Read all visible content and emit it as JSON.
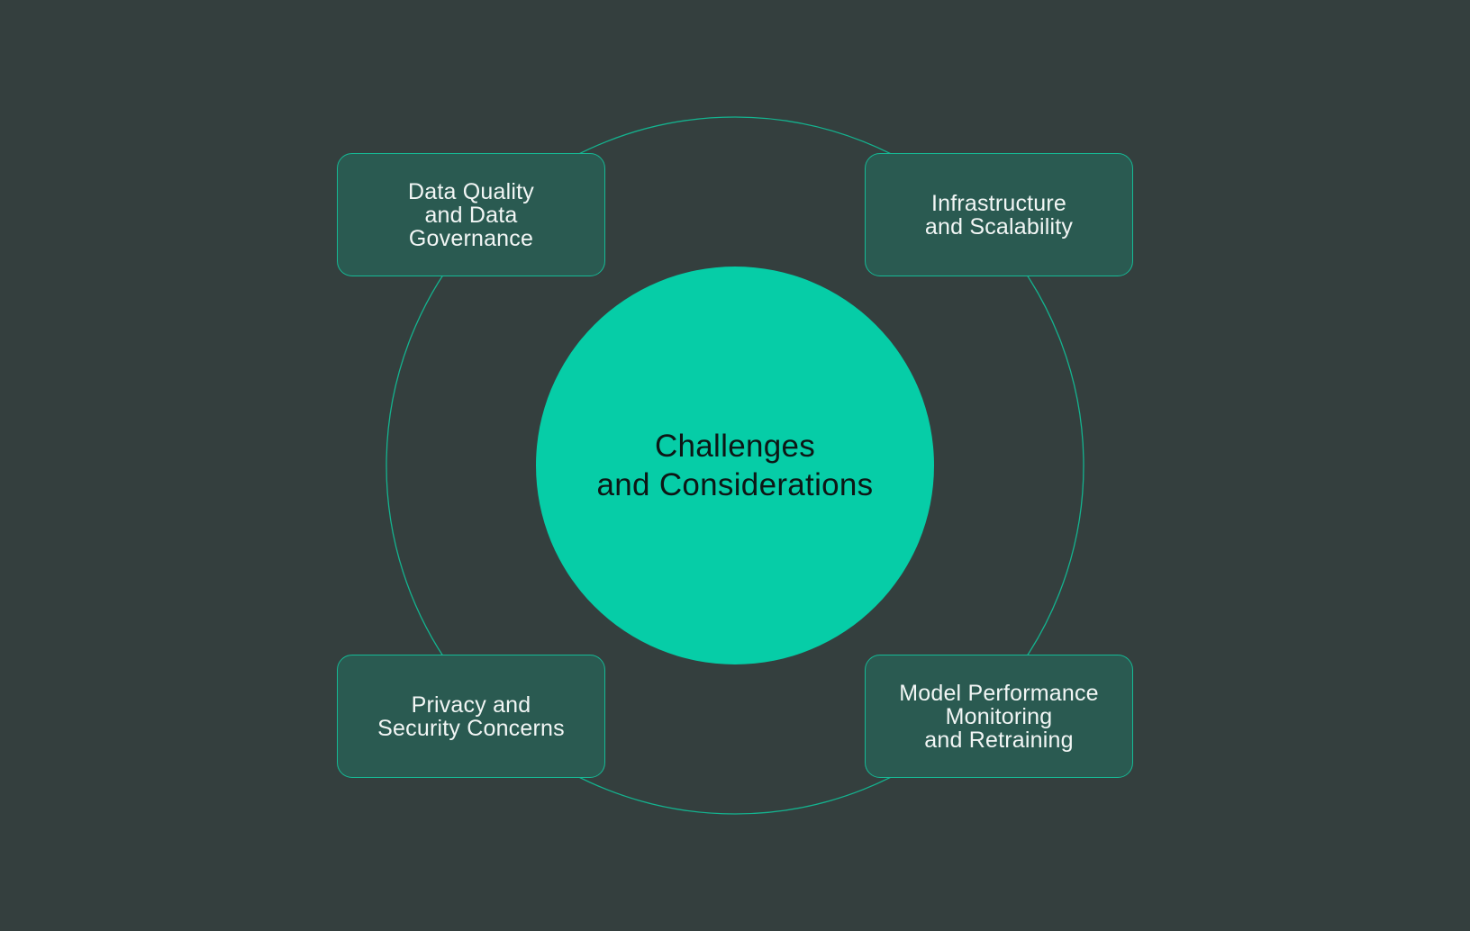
{
  "diagram": {
    "center": {
      "lines": [
        "Challenges",
        "and Considerations"
      ]
    },
    "nodes": {
      "top_left": {
        "lines": [
          "Data Quality",
          "and Data",
          "Governance"
        ]
      },
      "top_right": {
        "lines": [
          "Infrastructure",
          "and Scalability"
        ]
      },
      "bottom_left": {
        "lines": [
          "Privacy and",
          "Security Concerns"
        ]
      },
      "bottom_right": {
        "lines": [
          "Model Performance",
          "Monitoring",
          "and Retraining"
        ]
      }
    },
    "colors": {
      "background": "#343f3e",
      "hub_fill": "#06cda7",
      "hub_text": "#0d1615",
      "card_fill": "#2a5a51",
      "card_border": "#16b995",
      "ring_stroke": "#14b38f",
      "card_text": "#f2f6f5"
    }
  }
}
